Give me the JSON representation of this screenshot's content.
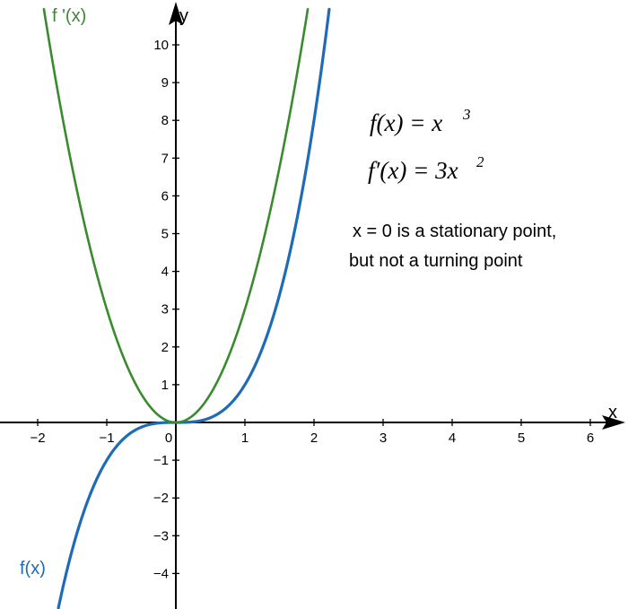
{
  "chart_data": {
    "type": "line",
    "title": "",
    "xlabel": "x",
    "ylabel": "y",
    "xlim": [
      -2.5,
      6.5
    ],
    "ylim": [
      -4.9,
      11.0
    ],
    "x_ticks": [
      -2,
      -1,
      0,
      1,
      2,
      3,
      4,
      5,
      6
    ],
    "x_tick_labels": [
      "−2",
      "−1",
      "0",
      "1",
      "2",
      "3",
      "4",
      "5",
      "6"
    ],
    "y_ticks": [
      -4,
      -3,
      -2,
      -1,
      1,
      2,
      3,
      4,
      5,
      6,
      7,
      8,
      9,
      10
    ],
    "y_tick_labels": [
      "−4",
      "−3",
      "−2",
      "−1",
      "1",
      "2",
      "3",
      "4",
      "5",
      "6",
      "7",
      "8",
      "9",
      "10"
    ],
    "grid": false,
    "series": [
      {
        "name": "f(x)",
        "formula": "x^3",
        "color": "#1e6bb8",
        "x": [
          -1.7,
          -1.5,
          -1.25,
          -1.0,
          -0.75,
          -0.5,
          -0.25,
          0,
          0.25,
          0.5,
          0.75,
          1.0,
          1.25,
          1.5,
          1.75,
          2.0,
          2.22
        ],
        "y": [
          -4.913,
          -3.375,
          -1.953,
          -1.0,
          -0.422,
          -0.125,
          -0.016,
          0,
          0.016,
          0.125,
          0.422,
          1.0,
          1.953,
          3.375,
          5.359,
          8.0,
          10.94
        ]
      },
      {
        "name": "f '(x)",
        "formula": "3x^2",
        "color": "#3a8a2e",
        "x": [
          -1.91,
          -1.75,
          -1.5,
          -1.25,
          -1.0,
          -0.75,
          -0.5,
          -0.25,
          0,
          0.25,
          0.5,
          0.75,
          1.0,
          1.25,
          1.5,
          1.75,
          1.91
        ],
        "y": [
          10.94,
          9.188,
          6.75,
          4.688,
          3.0,
          1.688,
          0.75,
          0.188,
          0,
          0.188,
          0.75,
          1.688,
          3.0,
          4.688,
          6.75,
          9.188,
          10.94
        ]
      }
    ],
    "curve_labels": {
      "f": "f(x)",
      "fprime": "f '(x)"
    },
    "annotations": {
      "eq1": {
        "lhs": "f(x) = x",
        "sup": "3"
      },
      "eq2": {
        "lhs": "f′(x) = 3x",
        "sup": "2"
      },
      "note_line1": "x = 0 is a stationary point,",
      "note_line2": "but not a turning point"
    }
  }
}
